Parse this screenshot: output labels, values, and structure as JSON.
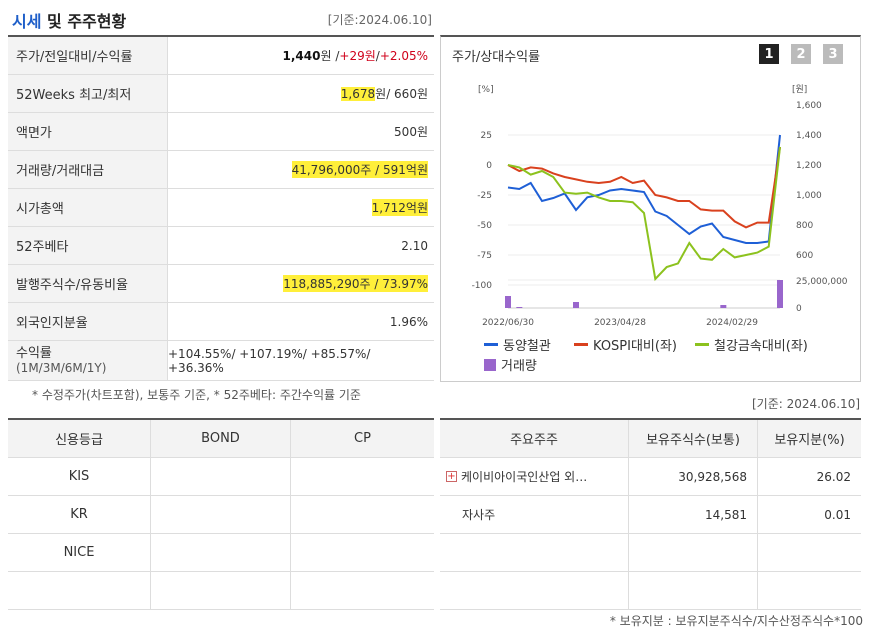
{
  "header": {
    "title_a": "시세",
    "title_b": "및 주주현황",
    "date": "[기준:2024.06.10]"
  },
  "price_table": {
    "rows": [
      {
        "label": "주가/전일대비/수익률",
        "v1": "1,440",
        "u1": "원 / ",
        "v2": "+29원",
        "sep": " / ",
        "v3": "+2.05%"
      },
      {
        "label": "52Weeks 최고/최저",
        "v1": "1,678",
        "u1": "원",
        "v2": " / 660원"
      },
      {
        "label": "액면가",
        "v1": "500원"
      },
      {
        "label": "거래량/거래대금",
        "v1": "41,796,000주 / 591억원"
      },
      {
        "label": "시가총액",
        "v1": "1,712억원"
      },
      {
        "label": "52주베타",
        "v1": "2.10"
      },
      {
        "label": "발행주식수/유동비율",
        "v1": "118,885,290주 / 73.97%"
      },
      {
        "label": "외국인지분율",
        "v1": "1.96%"
      }
    ],
    "returns_label": "수익률",
    "returns_sub": "(1M/3M/6M/1Y)",
    "returns_value": "+104.55%/ +107.19%/ +85.57%/ +36.36%",
    "note": "* 수정주가(차트포함), 보통주 기준, * 52주베타: 주간수익률 기준"
  },
  "chart": {
    "title": "주가/상대수익률",
    "buttons": [
      "1",
      "2",
      "3"
    ],
    "left_unit": "[%]",
    "right_unit": "[원]",
    "legend": [
      "동양철관",
      "KOSPI대비(좌)",
      "철강금속대비(좌)",
      "거래량"
    ],
    "colors": {
      "stock": "#1e5fd6",
      "kospi": "#d9411e",
      "steel": "#8cc21e",
      "volume": "#9966cc"
    }
  },
  "chart_data": {
    "type": "line",
    "x_ticks": [
      "2022/06/30",
      "2023/04/28",
      "2024/02/29"
    ],
    "y_left_ticks": [
      25,
      0,
      -25,
      -50,
      -75,
      -100
    ],
    "y_right_ticks": [
      "1,600",
      "1,400",
      "1,200",
      "1,000",
      "800",
      "600"
    ],
    "volume_ticks": [
      "25,000,000",
      "0"
    ],
    "series": [
      {
        "name": "동양철관",
        "axis": "right",
        "values": [
          1050,
          1040,
          1080,
          960,
          980,
          1010,
          900,
          985,
          1000,
          1030,
          1040,
          1030,
          1020,
          890,
          860,
          800,
          740,
          790,
          810,
          720,
          700,
          680,
          680,
          690,
          1400
        ]
      },
      {
        "name": "KOSPI대비(좌)",
        "axis": "left",
        "values": [
          0,
          -5,
          -2,
          -3,
          -7,
          -10,
          -12,
          -14,
          -15,
          -14,
          -10,
          -15,
          -13,
          -25,
          -27,
          -30,
          -30,
          -37,
          -38,
          -38,
          -47,
          -52,
          -48,
          -48,
          15
        ]
      },
      {
        "name": "철강금속대비(좌)",
        "axis": "left",
        "values": [
          0,
          -2,
          -8,
          -5,
          -10,
          -23,
          -24,
          -23,
          -27,
          -30,
          -30,
          -31,
          -40,
          -95,
          -85,
          -82,
          -65,
          -78,
          -79,
          -70,
          -77,
          -75,
          -73,
          -68,
          15
        ]
      },
      {
        "name": "거래량",
        "axis": "volume",
        "values": [
          12,
          1,
          0,
          0,
          0,
          0,
          6,
          0,
          0,
          0,
          0,
          0,
          0,
          0,
          0,
          0,
          0,
          0,
          0,
          3,
          0,
          0,
          0,
          0,
          28
        ]
      }
    ]
  },
  "credit": {
    "headers": [
      "신용등급",
      "BOND",
      "CP"
    ],
    "rows": [
      "KIS",
      "KR",
      "NICE",
      ""
    ]
  },
  "holders": {
    "date": "[기준: 2024.06.10]",
    "headers": [
      "주요주주",
      "보유주식수(보통)",
      "보유지분(%)"
    ],
    "rows": [
      {
        "name": "케이비아이국인산업 외…",
        "shares": "30,928,568",
        "pct": "26.02"
      },
      {
        "name": "자사주",
        "shares": "14,581",
        "pct": "0.01"
      },
      {
        "name": "",
        "shares": "",
        "pct": ""
      },
      {
        "name": "",
        "shares": "",
        "pct": ""
      }
    ],
    "note": "* 보유지분 : 보유지분주식수/지수산정주식수*100"
  }
}
